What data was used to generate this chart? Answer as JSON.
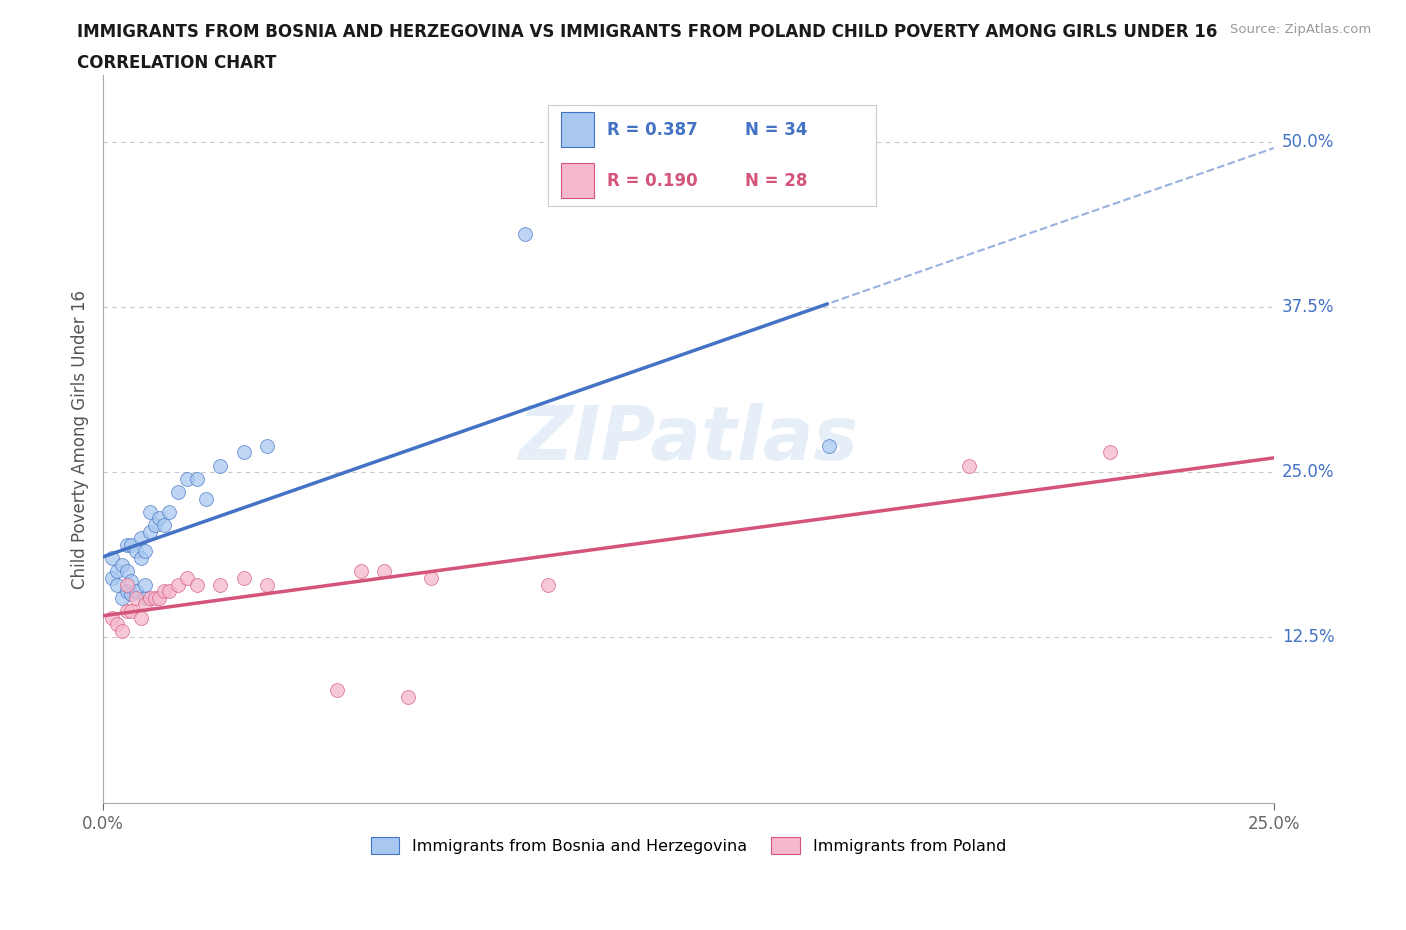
{
  "title_line1": "IMMIGRANTS FROM BOSNIA AND HERZEGOVINA VS IMMIGRANTS FROM POLAND CHILD POVERTY AMONG GIRLS UNDER 16",
  "title_line2": "CORRELATION CHART",
  "source": "Source: ZipAtlas.com",
  "ylabel": "Child Poverty Among Girls Under 16",
  "xlim": [
    0,
    0.25
  ],
  "ylim": [
    0,
    0.55
  ],
  "color_bosnia": "#a8c8f0",
  "color_poland": "#f5b8cc",
  "color_line_bosnia": "#4472c4",
  "color_line_poland": "#d4547a",
  "watermark": "ZIPatlas",
  "bosnia_x": [
    0.002,
    0.002,
    0.003,
    0.003,
    0.004,
    0.004,
    0.005,
    0.005,
    0.005,
    0.006,
    0.006,
    0.006,
    0.007,
    0.007,
    0.008,
    0.008,
    0.009,
    0.009,
    0.009,
    0.01,
    0.01,
    0.011,
    0.012,
    0.013,
    0.014,
    0.016,
    0.018,
    0.02,
    0.022,
    0.025,
    0.03,
    0.035,
    0.09,
    0.155
  ],
  "bosnia_y": [
    0.17,
    0.185,
    0.165,
    0.175,
    0.155,
    0.18,
    0.16,
    0.175,
    0.195,
    0.158,
    0.168,
    0.195,
    0.16,
    0.19,
    0.185,
    0.2,
    0.155,
    0.165,
    0.19,
    0.205,
    0.22,
    0.21,
    0.215,
    0.21,
    0.22,
    0.235,
    0.245,
    0.245,
    0.23,
    0.255,
    0.265,
    0.27,
    0.43,
    0.27
  ],
  "poland_x": [
    0.002,
    0.003,
    0.004,
    0.005,
    0.005,
    0.006,
    0.007,
    0.008,
    0.009,
    0.01,
    0.011,
    0.012,
    0.013,
    0.014,
    0.016,
    0.018,
    0.02,
    0.025,
    0.03,
    0.035,
    0.05,
    0.055,
    0.06,
    0.065,
    0.07,
    0.095,
    0.185,
    0.215
  ],
  "poland_y": [
    0.14,
    0.135,
    0.13,
    0.145,
    0.165,
    0.145,
    0.155,
    0.14,
    0.15,
    0.155,
    0.155,
    0.155,
    0.16,
    0.16,
    0.165,
    0.17,
    0.165,
    0.165,
    0.17,
    0.165,
    0.085,
    0.175,
    0.175,
    0.08,
    0.17,
    0.165,
    0.255,
    0.265
  ],
  "legend_r1": "R = 0.387",
  "legend_n1": "N = 34",
  "legend_r2": "R = 0.190",
  "legend_n2": "N = 28"
}
